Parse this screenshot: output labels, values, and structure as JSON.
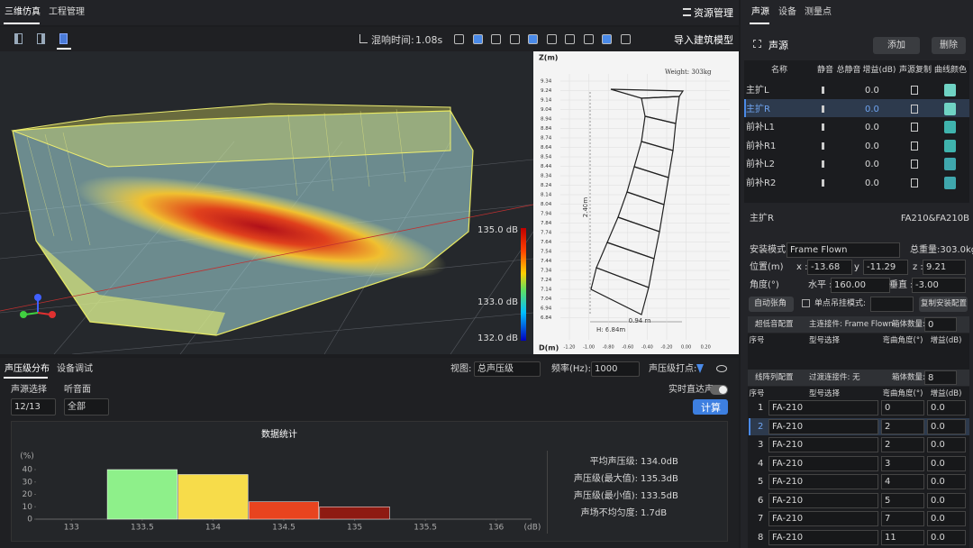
{
  "tabs": {
    "left": [
      "三维仿真",
      "工程管理"
    ],
    "resource": "资源管理"
  },
  "toolbar": {
    "reverb_label": "混响时间:",
    "reverb_value": "1.08s",
    "import": "导入建筑模型"
  },
  "viewport": {
    "colorbar": [
      "135.0 dB",
      "133.0 dB",
      "132.0 dB"
    ]
  },
  "array_view": {
    "z_label": "Z(m)",
    "d_label": "D(m)",
    "weight": "Weight: 303kg",
    "width": "0.94 m",
    "height": "H: 6.84m",
    "length": "2.40m",
    "z_ticks": [
      "9.34",
      "9.24",
      "9.14",
      "9.04",
      "8.94",
      "8.84",
      "8.74",
      "8.64",
      "8.54",
      "8.44",
      "8.34",
      "8.24",
      "8.14",
      "8.04",
      "7.94",
      "7.84",
      "7.74",
      "7.64",
      "7.54",
      "7.44",
      "7.34",
      "7.24",
      "7.14",
      "7.04",
      "6.94",
      "6.84"
    ],
    "d_ticks": [
      "-1.20",
      "-1.00",
      "-0.80",
      "-0.60",
      "-0.40",
      "-0.20",
      "0.00",
      "0.20"
    ]
  },
  "bottom": {
    "tabs": [
      "声压级分布",
      "设备调试"
    ],
    "view_label": "视图:",
    "view_value": "总声压级",
    "freq_label": "频率(Hz):",
    "freq_value": "1000",
    "dots_label": "声压级打点:",
    "source_label": "声源选择",
    "surface_label": "听音面",
    "source_value": "12/13",
    "surface_value": "全部",
    "realtime": "实时直达声",
    "calc": "计算"
  },
  "stats": [
    {
      "label": "平均声压级:",
      "value": "134.0dB"
    },
    {
      "label": "声压级(最大值):",
      "value": "135.3dB"
    },
    {
      "label": "声压级(最小值):",
      "value": "133.5dB"
    },
    {
      "label": "声场不均匀度:",
      "value": "1.7dB"
    }
  ],
  "chart_data": {
    "type": "histogram",
    "title": "数据统计",
    "ylabel": "(%)",
    "xlabel": "(dB)",
    "bins": [
      133.25,
      133.75,
      134.25,
      134.75,
      135.25
    ],
    "values": [
      40,
      36,
      14,
      10
    ],
    "colors": [
      "#8ef08a",
      "#f7dc4a",
      "#e8441f",
      "#8e1a12"
    ],
    "xlim": [
      132.75,
      136.25
    ],
    "ylim": [
      0,
      40
    ],
    "xticks": [
      133,
      133.5,
      134,
      134.5,
      135,
      135.5,
      136
    ],
    "yticks": [
      0,
      10,
      20,
      30,
      40
    ],
    "grid": false
  },
  "right": {
    "tabs": [
      "声源",
      "设备",
      "测量点"
    ],
    "header": "声源",
    "add": "添加",
    "delete": "删除",
    "columns": [
      "名称",
      "静音",
      "总静音",
      "增益(dB)",
      "声源复制",
      "曲线颜色"
    ],
    "selected": 1,
    "rows": [
      {
        "name": "主扩L",
        "gain": "0.0",
        "color": "#6fd3c4"
      },
      {
        "name": "主扩R",
        "gain": "0.0",
        "color": "#6fd3c4"
      },
      {
        "name": "前补L1",
        "gain": "0.0",
        "color": "#3fb3ad"
      },
      {
        "name": "前补R1",
        "gain": "0.0",
        "color": "#3fb3ad"
      },
      {
        "name": "前补L2",
        "gain": "0.0",
        "color": "#3fa7ad"
      },
      {
        "name": "前补R2",
        "gain": "0.0",
        "color": "#3fa7ad"
      }
    ]
  },
  "device": {
    "name": "主扩R",
    "model": "FA210&FA210B",
    "mount_label": "安装模式:",
    "mount_value": "Frame Flown",
    "weight": "总重量:303.0kg",
    "pos_label": "位置(m)",
    "x_label": "x :",
    "x": "-13.68",
    "y_label": "y :",
    "y": "-11.29",
    "z_label": "z :",
    "z": "9.21",
    "angle_label": "角度(°)",
    "h_label": "水平 :",
    "h": "160.00",
    "v_label": "垂直 :",
    "v": "-3.00",
    "auto": "自动张角",
    "single": "单点吊挂模式:",
    "copy": "复制安装配置"
  },
  "sub": {
    "title": "超低音配置",
    "conn": "主连接件: Frame Flown",
    "count_label": "箱体数量:",
    "count": "0",
    "columns": [
      "序号",
      "型号选择",
      "弯曲角度(°)",
      "增益(dB)"
    ]
  },
  "array": {
    "title": "线阵列配置",
    "conn": "过渡连接件: 无",
    "count_label": "箱体数量:",
    "count": "8",
    "columns": [
      "序号",
      "型号选择",
      "弯曲角度(°)",
      "增益(dB)"
    ],
    "selected": 1,
    "rows": [
      {
        "index": "1",
        "model": "FA-210",
        "angle": "0",
        "gain": "0.0"
      },
      {
        "index": "2",
        "model": "FA-210",
        "angle": "2",
        "gain": "0.0"
      },
      {
        "index": "3",
        "model": "FA-210",
        "angle": "2",
        "gain": "0.0"
      },
      {
        "index": "4",
        "model": "FA-210",
        "angle": "3",
        "gain": "0.0"
      },
      {
        "index": "5",
        "model": "FA-210",
        "angle": "4",
        "gain": "0.0"
      },
      {
        "index": "6",
        "model": "FA-210",
        "angle": "5",
        "gain": "0.0"
      },
      {
        "index": "7",
        "model": "FA-210",
        "angle": "7",
        "gain": "0.0"
      },
      {
        "index": "8",
        "model": "FA-210",
        "angle": "11",
        "gain": "0.0"
      }
    ]
  }
}
